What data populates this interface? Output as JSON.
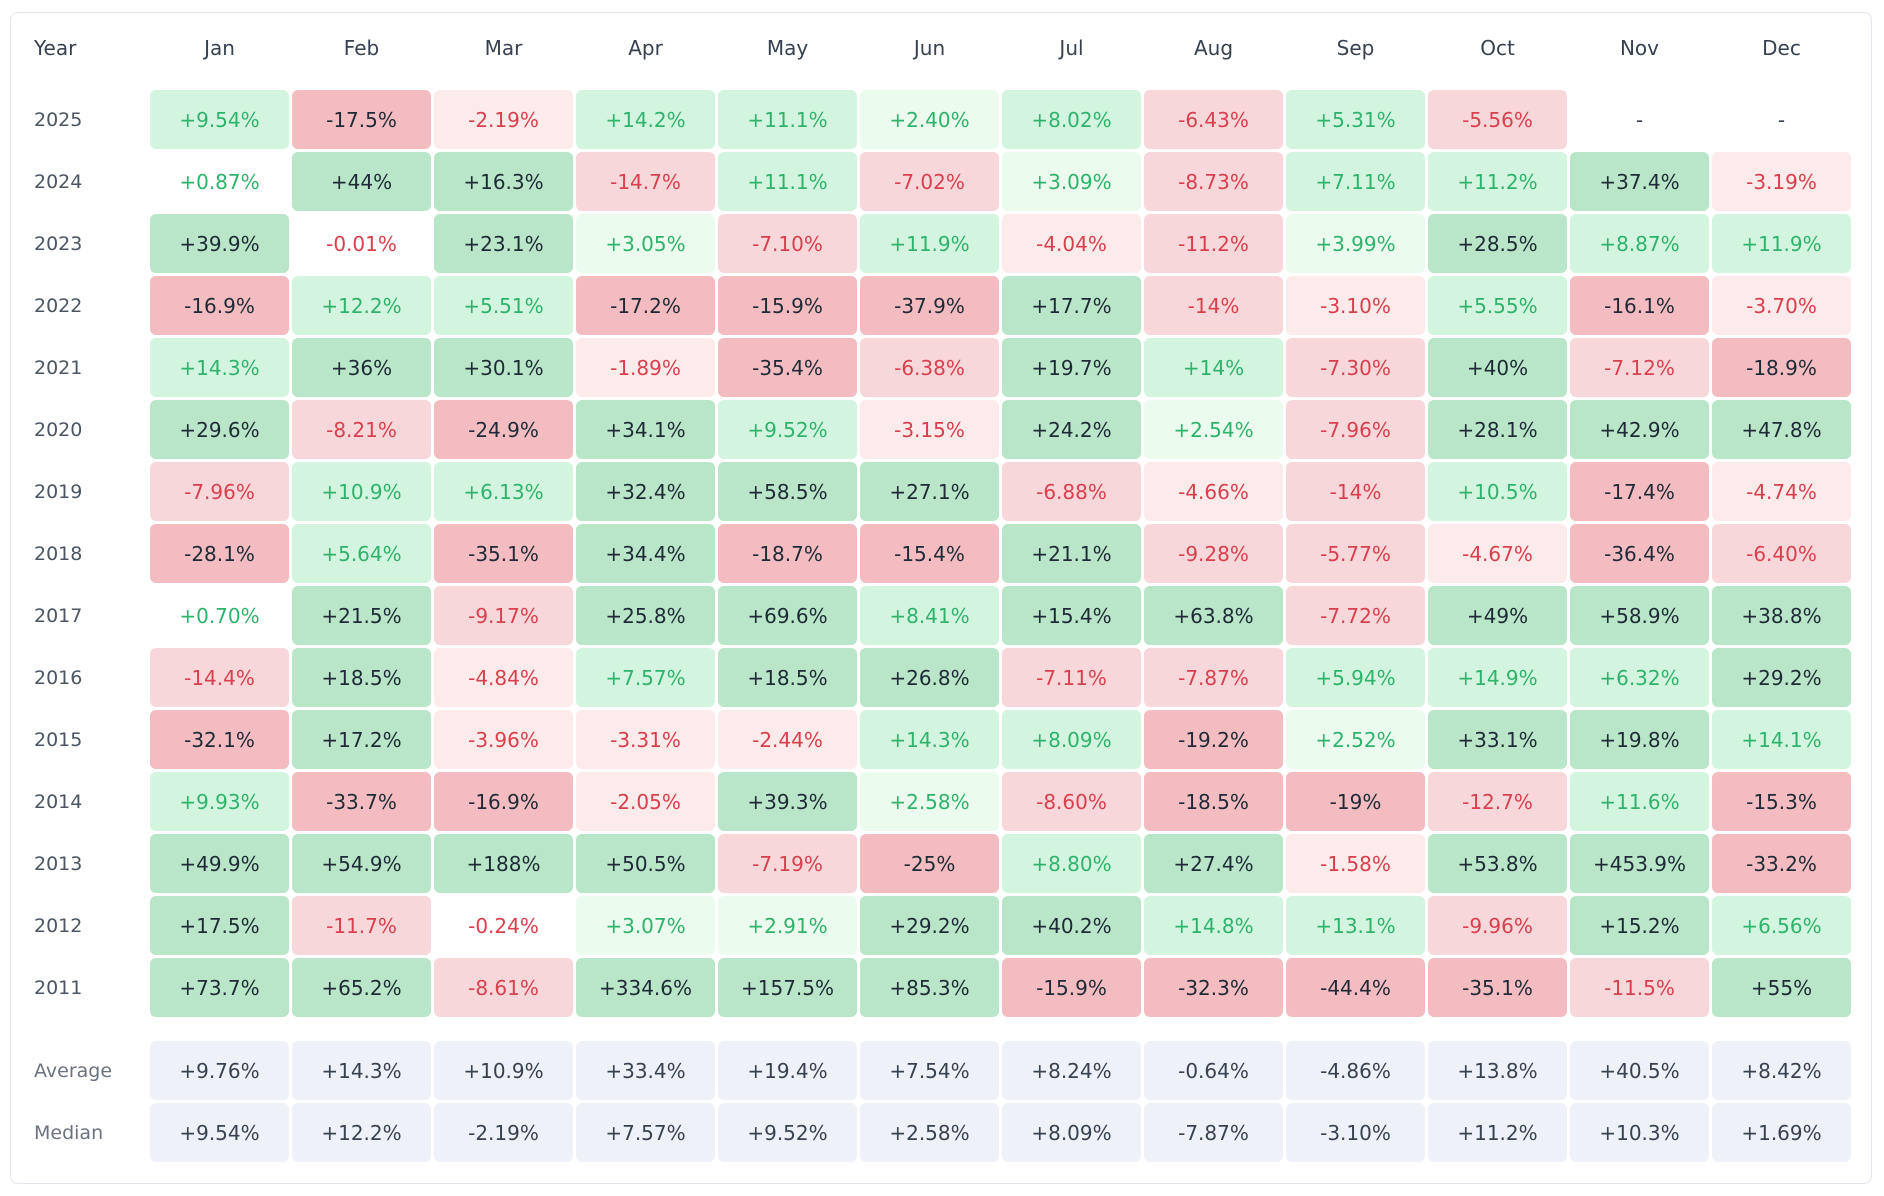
{
  "chart_data": {
    "type": "heatmap",
    "corner_label": "Year",
    "columns": [
      "Jan",
      "Feb",
      "Mar",
      "Apr",
      "May",
      "Jun",
      "Jul",
      "Aug",
      "Sep",
      "Oct",
      "Nov",
      "Dec"
    ],
    "rows": [
      {
        "year": "2025",
        "values": [
          "+9.54%",
          "-17.5%",
          "-2.19%",
          "+14.2%",
          "+11.1%",
          "+2.40%",
          "+8.02%",
          "-6.43%",
          "+5.31%",
          "-5.56%",
          "-",
          "-"
        ]
      },
      {
        "year": "2024",
        "values": [
          "+0.87%",
          "+44%",
          "+16.3%",
          "-14.7%",
          "+11.1%",
          "-7.02%",
          "+3.09%",
          "-8.73%",
          "+7.11%",
          "+11.2%",
          "+37.4%",
          "-3.19%"
        ]
      },
      {
        "year": "2023",
        "values": [
          "+39.9%",
          "-0.01%",
          "+23.1%",
          "+3.05%",
          "-7.10%",
          "+11.9%",
          "-4.04%",
          "-11.2%",
          "+3.99%",
          "+28.5%",
          "+8.87%",
          "+11.9%"
        ]
      },
      {
        "year": "2022",
        "values": [
          "-16.9%",
          "+12.2%",
          "+5.51%",
          "-17.2%",
          "-15.9%",
          "-37.9%",
          "+17.7%",
          "-14%",
          "-3.10%",
          "+5.55%",
          "-16.1%",
          "-3.70%"
        ]
      },
      {
        "year": "2021",
        "values": [
          "+14.3%",
          "+36%",
          "+30.1%",
          "-1.89%",
          "-35.4%",
          "-6.38%",
          "+19.7%",
          "+14%",
          "-7.30%",
          "+40%",
          "-7.12%",
          "-18.9%"
        ]
      },
      {
        "year": "2020",
        "values": [
          "+29.6%",
          "-8.21%",
          "-24.9%",
          "+34.1%",
          "+9.52%",
          "-3.15%",
          "+24.2%",
          "+2.54%",
          "-7.96%",
          "+28.1%",
          "+42.9%",
          "+47.8%"
        ]
      },
      {
        "year": "2019",
        "values": [
          "-7.96%",
          "+10.9%",
          "+6.13%",
          "+32.4%",
          "+58.5%",
          "+27.1%",
          "-6.88%",
          "-4.66%",
          "-14%",
          "+10.5%",
          "-17.4%",
          "-4.74%"
        ]
      },
      {
        "year": "2018",
        "values": [
          "-28.1%",
          "+5.64%",
          "-35.1%",
          "+34.4%",
          "-18.7%",
          "-15.4%",
          "+21.1%",
          "-9.28%",
          "-5.77%",
          "-4.67%",
          "-36.4%",
          "-6.40%"
        ]
      },
      {
        "year": "2017",
        "values": [
          "+0.70%",
          "+21.5%",
          "-9.17%",
          "+25.8%",
          "+69.6%",
          "+8.41%",
          "+15.4%",
          "+63.8%",
          "-7.72%",
          "+49%",
          "+58.9%",
          "+38.8%"
        ]
      },
      {
        "year": "2016",
        "values": [
          "-14.4%",
          "+18.5%",
          "-4.84%",
          "+7.57%",
          "+18.5%",
          "+26.8%",
          "-7.11%",
          "-7.87%",
          "+5.94%",
          "+14.9%",
          "+6.32%",
          "+29.2%"
        ]
      },
      {
        "year": "2015",
        "values": [
          "-32.1%",
          "+17.2%",
          "-3.96%",
          "-3.31%",
          "-2.44%",
          "+14.3%",
          "+8.09%",
          "-19.2%",
          "+2.52%",
          "+33.1%",
          "+19.8%",
          "+14.1%"
        ]
      },
      {
        "year": "2014",
        "values": [
          "+9.93%",
          "-33.7%",
          "-16.9%",
          "-2.05%",
          "+39.3%",
          "+2.58%",
          "-8.60%",
          "-18.5%",
          "-19%",
          "-12.7%",
          "+11.6%",
          "-15.3%"
        ]
      },
      {
        "year": "2013",
        "values": [
          "+49.9%",
          "+54.9%",
          "+188%",
          "+50.5%",
          "-7.19%",
          "-25%",
          "+8.80%",
          "+27.4%",
          "-1.58%",
          "+53.8%",
          "+453.9%",
          "-33.2%"
        ]
      },
      {
        "year": "2012",
        "values": [
          "+17.5%",
          "-11.7%",
          "-0.24%",
          "+3.07%",
          "+2.91%",
          "+29.2%",
          "+40.2%",
          "+14.8%",
          "+13.1%",
          "-9.96%",
          "+15.2%",
          "+6.56%"
        ]
      },
      {
        "year": "2011",
        "values": [
          "+73.7%",
          "+65.2%",
          "-8.61%",
          "+334.6%",
          "+157.5%",
          "+85.3%",
          "-15.9%",
          "-32.3%",
          "-44.4%",
          "-35.1%",
          "-11.5%",
          "+55%"
        ]
      }
    ],
    "summary_rows": [
      {
        "label": "Average",
        "values": [
          "+9.76%",
          "+14.3%",
          "+10.9%",
          "+33.4%",
          "+19.4%",
          "+7.54%",
          "+8.24%",
          "-0.64%",
          "-4.86%",
          "+13.8%",
          "+40.5%",
          "+8.42%"
        ]
      },
      {
        "label": "Median",
        "values": [
          "+9.54%",
          "+12.2%",
          "-2.19%",
          "+7.57%",
          "+9.52%",
          "+2.58%",
          "+8.09%",
          "-7.87%",
          "-3.10%",
          "+11.2%",
          "+10.3%",
          "+1.69%"
        ]
      }
    ],
    "colors": {
      "pos_text": "#2fb36b",
      "neg_text": "#d9404d",
      "strong_text": "#1f2937",
      "pos_strong_bg": "#b9e6c8",
      "pos_mid_bg": "#d3f5df",
      "pos_weak_bg": "#ebfcef",
      "neg_strong_bg": "#f3bcc0",
      "neg_mid_bg": "#f8d7da",
      "neg_weak_bg": "#fdeaeb",
      "summary_bg": "#eef2f8"
    }
  }
}
